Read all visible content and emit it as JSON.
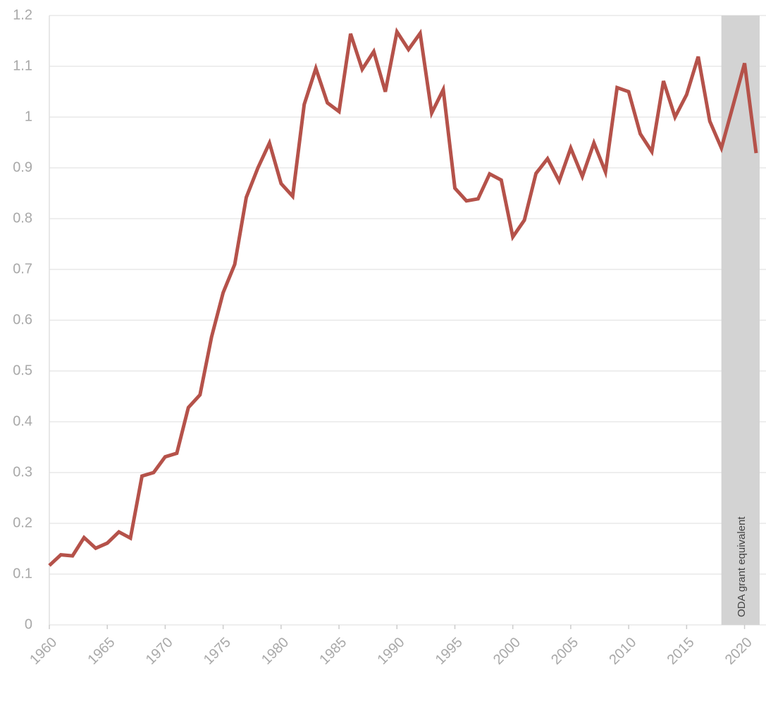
{
  "chart_data": {
    "type": "line",
    "x": [
      1960,
      1961,
      1962,
      1963,
      1964,
      1965,
      1966,
      1967,
      1968,
      1969,
      1970,
      1971,
      1972,
      1973,
      1974,
      1975,
      1976,
      1977,
      1978,
      1979,
      1980,
      1981,
      1982,
      1983,
      1984,
      1985,
      1986,
      1987,
      1988,
      1989,
      1990,
      1991,
      1992,
      1993,
      1994,
      1995,
      1996,
      1997,
      1998,
      1999,
      2000,
      2001,
      2002,
      2003,
      2004,
      2005,
      2006,
      2007,
      2008,
      2009,
      2010,
      2011,
      2012,
      2013,
      2014,
      2015,
      2016,
      2017,
      2018,
      2019,
      2020,
      2021
    ],
    "values": [
      0.117,
      0.138,
      0.136,
      0.172,
      0.151,
      0.161,
      0.183,
      0.171,
      0.293,
      0.3,
      0.331,
      0.338,
      0.428,
      0.453,
      0.567,
      0.654,
      0.71,
      0.842,
      0.9,
      0.949,
      0.869,
      0.844,
      1.025,
      1.096,
      1.028,
      1.011,
      1.164,
      1.094,
      1.129,
      1.05,
      1.168,
      1.133,
      1.165,
      1.008,
      1.054,
      0.86,
      0.835,
      0.839,
      0.888,
      0.876,
      0.764,
      0.797,
      0.889,
      0.918,
      0.874,
      0.939,
      0.883,
      0.949,
      0.892,
      1.058,
      1.05,
      0.967,
      0.932,
      1.071,
      1.0,
      1.044,
      1.119,
      0.992,
      0.939,
      1.022,
      1.106,
      0.929
    ],
    "color": "#b5524a",
    "xlim": [
      1960,
      2021
    ],
    "xticks": [
      1960,
      1965,
      1970,
      1975,
      1980,
      1985,
      1990,
      1995,
      2000,
      2005,
      2010,
      2015,
      2020
    ],
    "ylim": [
      0,
      1.2
    ],
    "yticks": [
      0,
      0.1,
      0.2,
      0.3,
      0.4,
      0.5,
      0.6,
      0.7,
      0.8,
      0.9,
      1,
      1.1,
      1.2
    ],
    "grid": true,
    "shaded_region": {
      "x": [
        2018,
        2021
      ],
      "label": "ODA grant equivalent",
      "color": "#d3d3d3"
    }
  }
}
